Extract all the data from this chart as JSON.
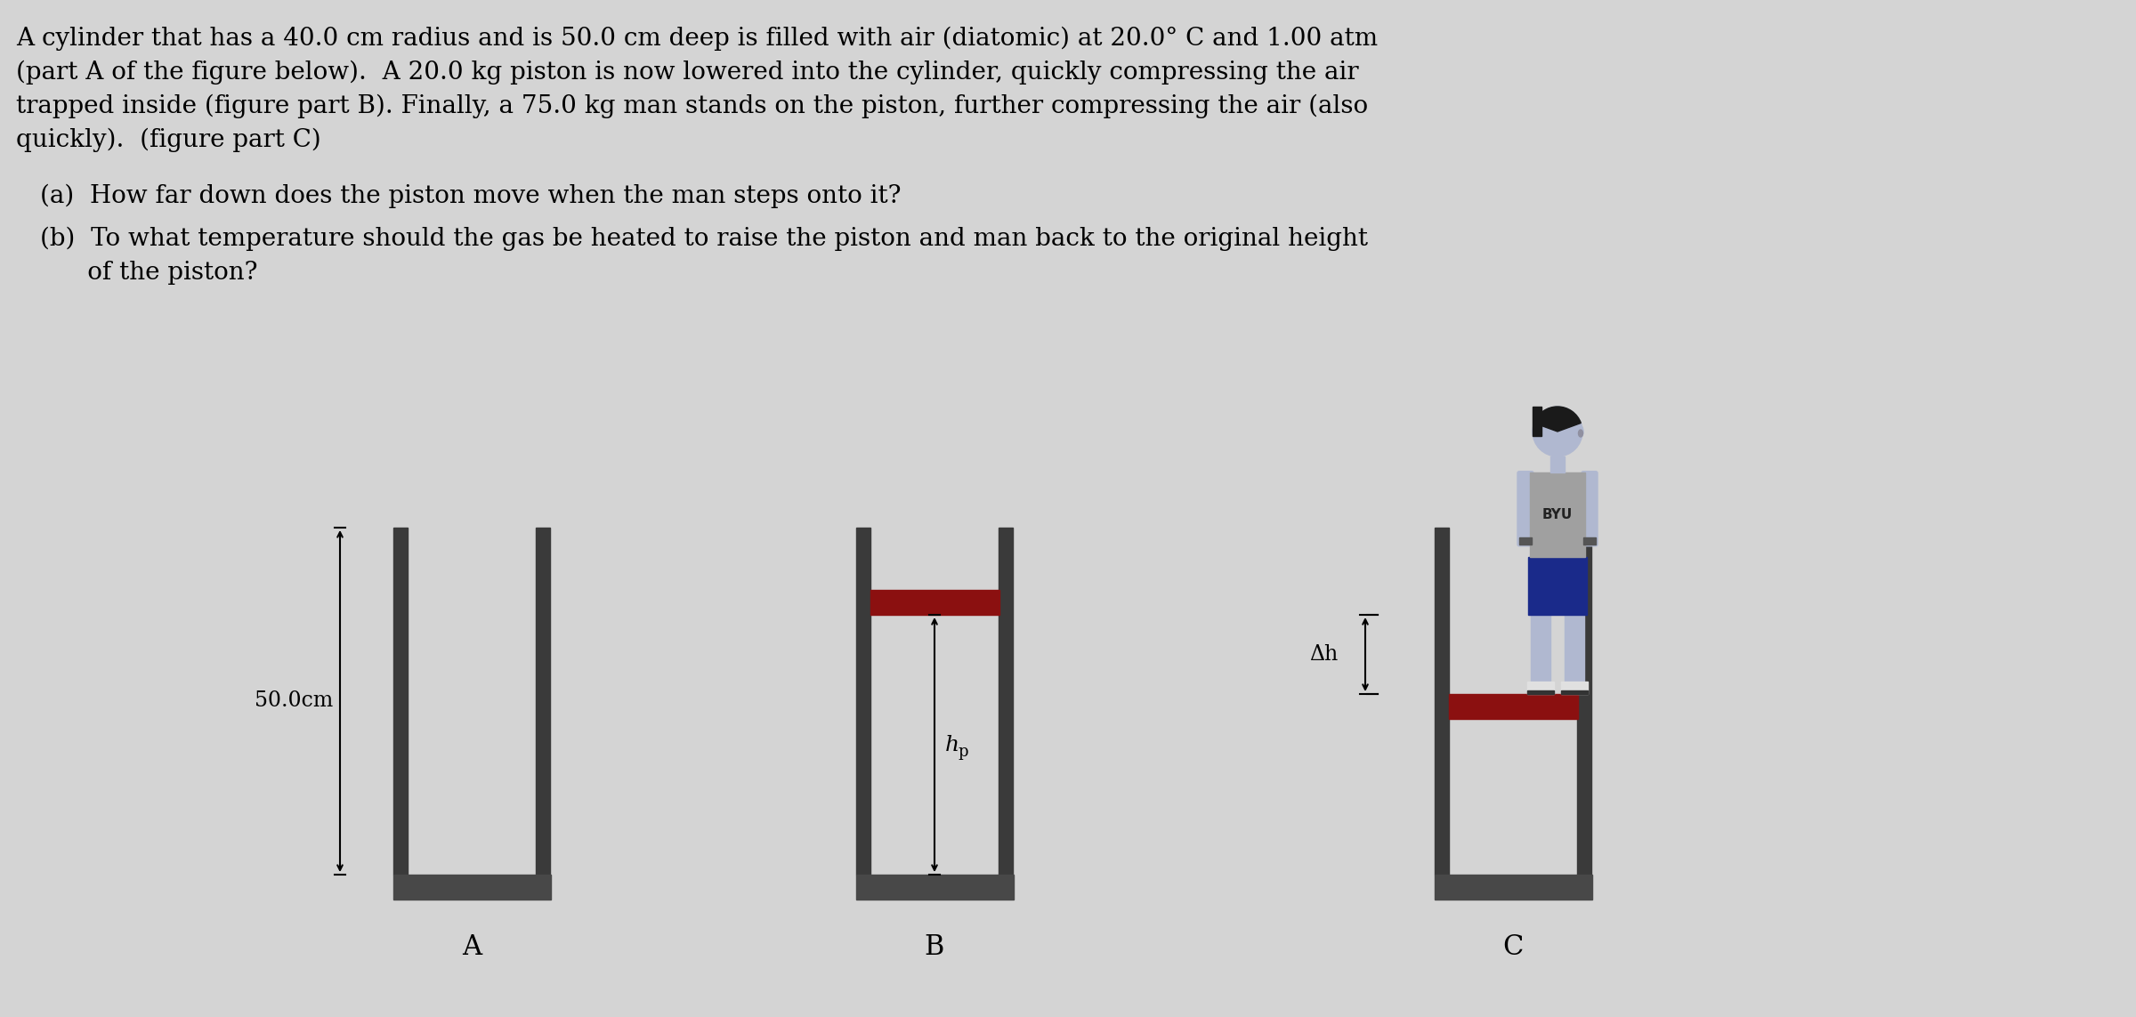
{
  "bg_color": "#d4d4d4",
  "wall_color": "#3a3a3a",
  "floor_color": "#484848",
  "piston_color": "#8B1010",
  "text_color": "#000000",
  "title_lines": [
    "A cylinder that has a 40.0 cm radius and is 50.0 cm deep is filled with air (diatomic) at 20.0° C and 1.00 atm",
    "(part A of the figure below).  A 20.0 kg piston is now lowered into the cylinder, quickly compressing the air",
    "trapped inside (figure part B). Finally, a 75.0 kg man stands on the piston, further compressing the air (also",
    "quickly).  (figure part C)"
  ],
  "question_a": "(a)  How far down does the piston move when the man steps onto it?",
  "question_b1": "(b)  To what temperature should the gas be heated to raise the piston and man back to the original height",
  "question_b2": "      of the piston?",
  "label_A": "A",
  "label_B": "B",
  "label_C": "C",
  "label_50cm": "50.0cm",
  "label_hp": "h",
  "label_dh": "Δh",
  "skin_color": "#b0b8d0",
  "hair_color": "#1a1a1a",
  "shirt_color": "#a0a0a0",
  "shirt_text": "BYU",
  "shorts_color": "#1a2a8a",
  "shoe_color": "#f0f0f0",
  "shoe_sole_color": "#222222"
}
